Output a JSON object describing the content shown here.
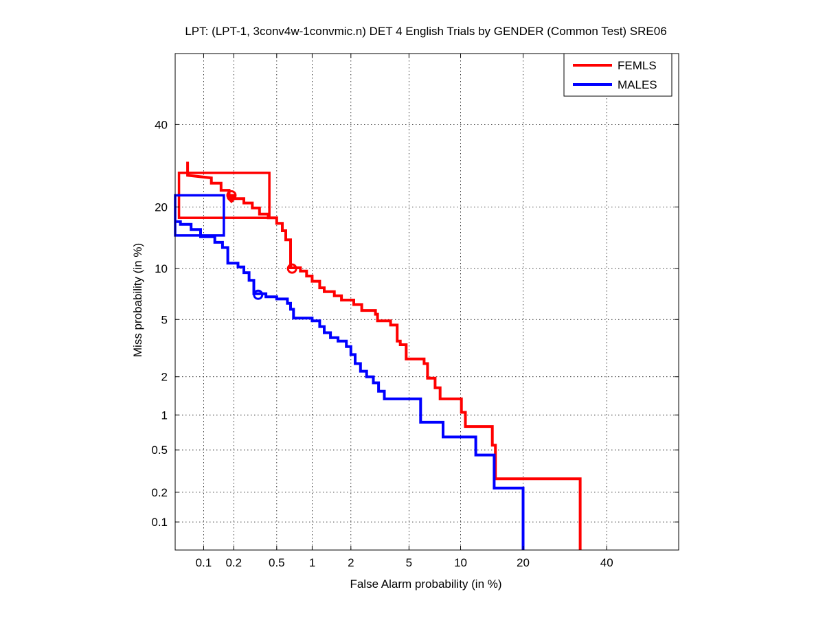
{
  "chart_data": {
    "type": "line",
    "title": "LPT: (LPT-1, 3conv4w-1convmic.n) DET 4 English Trials by GENDER (Common Test) SRE06",
    "xlabel": "False Alarm probability (in %)",
    "ylabel": "Miss probability (in %)",
    "xscale": "normal-deviate (probit)",
    "yscale": "normal-deviate (probit)",
    "xlim": [
      0.05,
      60
    ],
    "ylim": [
      0.05,
      60
    ],
    "xticks": [
      0.1,
      0.2,
      0.5,
      1,
      2,
      5,
      10,
      20,
      40
    ],
    "xtick_labels": [
      "0.1",
      "0.2",
      "0.5",
      "1",
      "2",
      "5",
      "10",
      "20",
      "40"
    ],
    "yticks": [
      0.1,
      0.2,
      0.5,
      1,
      2,
      5,
      10,
      20,
      40
    ],
    "ytick_labels": [
      "0.1",
      "0.2",
      "0.5",
      "1",
      "2",
      "5",
      "10",
      "20",
      "40"
    ],
    "grid": true,
    "legend_position": "top-right",
    "series": [
      {
        "name": "FEMLS",
        "color": "#ff0000",
        "points": [
          [
            0.068,
            30.2
          ],
          [
            0.068,
            26.9
          ],
          [
            0.12,
            26.3
          ],
          [
            0.12,
            25.1
          ],
          [
            0.15,
            25.1
          ],
          [
            0.15,
            23.5
          ],
          [
            0.18,
            23.5
          ],
          [
            0.18,
            22.4
          ],
          [
            0.2,
            22.4
          ],
          [
            0.2,
            21.7
          ],
          [
            0.25,
            21.7
          ],
          [
            0.25,
            20.8
          ],
          [
            0.3,
            20.8
          ],
          [
            0.3,
            19.8
          ],
          [
            0.35,
            19.8
          ],
          [
            0.35,
            18.6
          ],
          [
            0.42,
            18.6
          ],
          [
            0.42,
            17.9
          ],
          [
            0.5,
            17.9
          ],
          [
            0.5,
            16.9
          ],
          [
            0.56,
            16.9
          ],
          [
            0.56,
            15.6
          ],
          [
            0.6,
            15.6
          ],
          [
            0.6,
            14.1
          ],
          [
            0.66,
            14.1
          ],
          [
            0.66,
            10.1
          ],
          [
            0.8,
            10.1
          ],
          [
            0.8,
            9.7
          ],
          [
            0.9,
            9.7
          ],
          [
            0.9,
            9.1
          ],
          [
            1.0,
            9.1
          ],
          [
            1.0,
            8.5
          ],
          [
            1.15,
            8.5
          ],
          [
            1.15,
            7.8
          ],
          [
            1.25,
            7.8
          ],
          [
            1.25,
            7.4
          ],
          [
            1.5,
            7.4
          ],
          [
            1.5,
            7.0
          ],
          [
            1.7,
            7.0
          ],
          [
            1.7,
            6.6
          ],
          [
            2.1,
            6.6
          ],
          [
            2.1,
            6.2
          ],
          [
            2.4,
            6.2
          ],
          [
            2.4,
            5.7
          ],
          [
            3.0,
            5.7
          ],
          [
            3.0,
            5.4
          ],
          [
            3.1,
            5.4
          ],
          [
            3.1,
            4.9
          ],
          [
            3.8,
            4.9
          ],
          [
            3.8,
            4.6
          ],
          [
            4.2,
            4.6
          ],
          [
            4.2,
            3.6
          ],
          [
            4.4,
            3.6
          ],
          [
            4.4,
            3.4
          ],
          [
            4.8,
            3.4
          ],
          [
            4.8,
            2.7
          ],
          [
            6.2,
            2.7
          ],
          [
            6.2,
            2.5
          ],
          [
            6.5,
            2.5
          ],
          [
            6.5,
            1.95
          ],
          [
            7.2,
            1.95
          ],
          [
            7.2,
            1.65
          ],
          [
            7.7,
            1.65
          ],
          [
            7.7,
            1.35
          ],
          [
            10.1,
            1.35
          ],
          [
            10.1,
            1.05
          ],
          [
            10.6,
            1.05
          ],
          [
            10.6,
            0.8
          ],
          [
            14.5,
            0.8
          ],
          [
            14.5,
            0.55
          ],
          [
            15.0,
            0.55
          ],
          [
            15.0,
            0.27
          ],
          [
            33.0,
            0.27
          ],
          [
            33.0,
            0.05
          ]
        ]
      },
      {
        "name": "MALES",
        "color": "#0000ff",
        "points": [
          [
            0.05,
            17.2
          ],
          [
            0.057,
            17.2
          ],
          [
            0.057,
            16.7
          ],
          [
            0.074,
            16.7
          ],
          [
            0.074,
            15.8
          ],
          [
            0.093,
            15.8
          ],
          [
            0.093,
            14.6
          ],
          [
            0.13,
            14.6
          ],
          [
            0.13,
            13.7
          ],
          [
            0.155,
            13.7
          ],
          [
            0.155,
            12.9
          ],
          [
            0.175,
            12.9
          ],
          [
            0.175,
            10.7
          ],
          [
            0.22,
            10.7
          ],
          [
            0.22,
            10.2
          ],
          [
            0.25,
            10.2
          ],
          [
            0.25,
            9.5
          ],
          [
            0.28,
            9.5
          ],
          [
            0.28,
            8.6
          ],
          [
            0.31,
            8.6
          ],
          [
            0.31,
            7.2
          ],
          [
            0.4,
            7.2
          ],
          [
            0.4,
            6.9
          ],
          [
            0.5,
            6.9
          ],
          [
            0.5,
            6.7
          ],
          [
            0.62,
            6.7
          ],
          [
            0.62,
            6.3
          ],
          [
            0.66,
            6.3
          ],
          [
            0.66,
            5.8
          ],
          [
            0.7,
            5.8
          ],
          [
            0.7,
            5.1
          ],
          [
            1.0,
            5.1
          ],
          [
            1.0,
            4.9
          ],
          [
            1.15,
            4.9
          ],
          [
            1.15,
            4.5
          ],
          [
            1.25,
            4.5
          ],
          [
            1.25,
            4.1
          ],
          [
            1.4,
            4.1
          ],
          [
            1.4,
            3.8
          ],
          [
            1.6,
            3.8
          ],
          [
            1.6,
            3.6
          ],
          [
            1.85,
            3.6
          ],
          [
            1.85,
            3.3
          ],
          [
            2.0,
            3.3
          ],
          [
            2.0,
            2.9
          ],
          [
            2.15,
            2.9
          ],
          [
            2.15,
            2.5
          ],
          [
            2.35,
            2.5
          ],
          [
            2.35,
            2.2
          ],
          [
            2.6,
            2.2
          ],
          [
            2.6,
            2.0
          ],
          [
            2.9,
            2.0
          ],
          [
            2.9,
            1.8
          ],
          [
            3.15,
            1.8
          ],
          [
            3.15,
            1.55
          ],
          [
            3.45,
            1.55
          ],
          [
            3.45,
            1.35
          ],
          [
            5.9,
            1.35
          ],
          [
            5.9,
            0.87
          ],
          [
            8.0,
            0.87
          ],
          [
            8.0,
            0.65
          ],
          [
            12.0,
            0.65
          ],
          [
            12.0,
            0.45
          ],
          [
            14.8,
            0.45
          ],
          [
            14.8,
            0.22
          ],
          [
            20.0,
            0.22
          ],
          [
            20.0,
            0.05
          ]
        ]
      }
    ],
    "overlay_rectangles": [
      {
        "series": "FEMLS",
        "x_range": [
          0.055,
          0.43
        ],
        "y_range": [
          17.9,
          27.5
        ]
      },
      {
        "series": "MALES",
        "x_range": [
          0.05,
          0.16
        ],
        "y_range": [
          14.8,
          22.4
        ]
      }
    ],
    "markers": [
      {
        "series": "FEMLS",
        "x": 0.19,
        "y": 22.4,
        "shape": "circle"
      },
      {
        "series": "FEMLS",
        "x": 0.19,
        "y": 21.7,
        "shape": "diamond"
      },
      {
        "series": "FEMLS",
        "x": 0.68,
        "y": 10.0,
        "shape": "circle"
      },
      {
        "series": "MALES",
        "x": 0.34,
        "y": 7.1,
        "shape": "circle"
      }
    ]
  }
}
